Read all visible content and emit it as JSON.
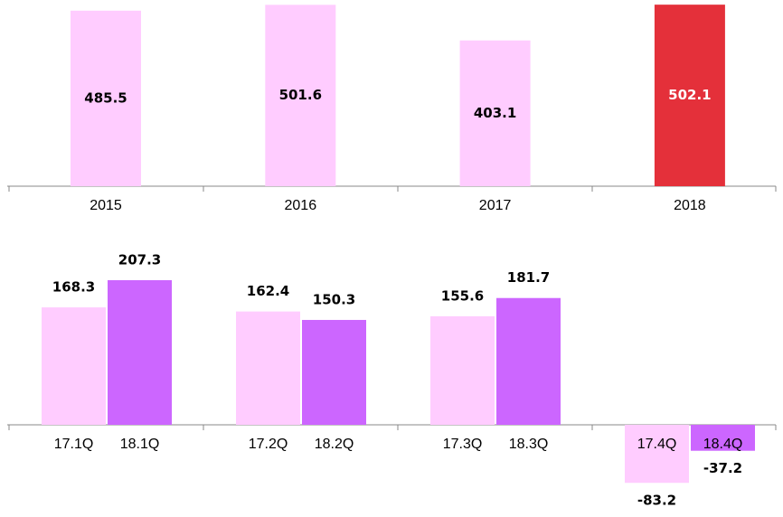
{
  "chart_data": [
    {
      "type": "bar",
      "categories": [
        "2015",
        "2016",
        "2017",
        "2018"
      ],
      "values": [
        485.5,
        501.6,
        403.1,
        502.1
      ],
      "colors": [
        "#ffccff",
        "#ffccff",
        "#ffccff",
        "#e4303a"
      ],
      "value_label_position": "inside"
    },
    {
      "type": "bar",
      "categories": [
        "17.1Q",
        "18.1Q",
        "17.2Q",
        "18.2Q",
        "17.3Q",
        "18.3Q",
        "17.4Q",
        "18.4Q"
      ],
      "values": [
        168.3,
        207.3,
        162.4,
        150.3,
        155.6,
        181.7,
        -83.2,
        -37.2
      ],
      "colors": [
        "#ffccff",
        "#cc66ff",
        "#ffccff",
        "#cc66ff",
        "#ffccff",
        "#cc66ff",
        "#ffccff",
        "#cc66ff"
      ],
      "value_label_position": "outside"
    }
  ]
}
